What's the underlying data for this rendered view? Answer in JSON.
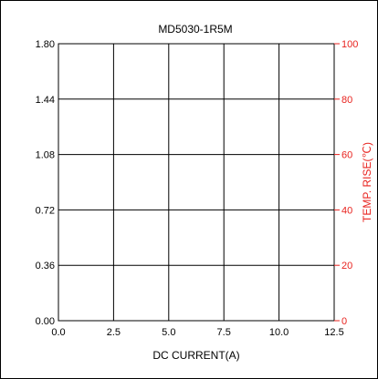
{
  "chart_data": {
    "type": "line",
    "title": "MD5030-1R5M",
    "xlabel": "DC CURRENT(A)",
    "ylabel": "",
    "y2label": "TEMP. RISE(℃)",
    "xlim": [
      0,
      12.5
    ],
    "ylim": [
      0,
      1.8
    ],
    "y2lim": [
      0,
      100
    ],
    "x_ticks": [
      "0.0",
      "2.5",
      "5.0",
      "7.5",
      "10.0",
      "12.5"
    ],
    "y_ticks": [
      "0.00",
      "0.36",
      "0.72",
      "1.08",
      "1.44",
      "1.80"
    ],
    "y2_ticks": [
      "0",
      "20",
      "40",
      "60",
      "80",
      "100"
    ],
    "grid": true,
    "series": [],
    "colors": {
      "axis": "#000000",
      "grid": "#000000",
      "secondary_axis": "#e8231f",
      "border": "#000000"
    }
  }
}
